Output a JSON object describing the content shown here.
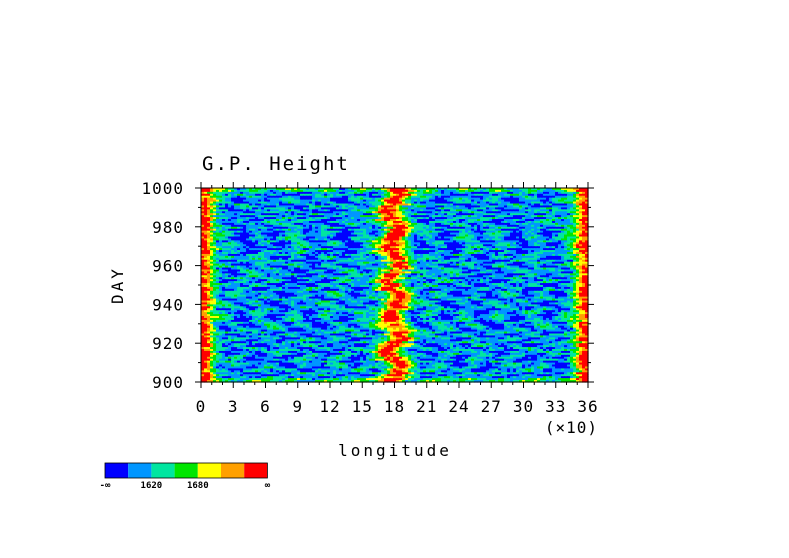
{
  "chart_data": {
    "type": "heatmap",
    "title": "G.P. Height",
    "xlabel": "longitude",
    "ylabel": "DAY",
    "x_scale_note": "(×10)",
    "xlim": [
      0,
      36
    ],
    "ylim": [
      900,
      1000
    ],
    "x_ticks": [
      0,
      3,
      6,
      9,
      12,
      15,
      18,
      21,
      24,
      27,
      30,
      33,
      36
    ],
    "x_tick_labels": [
      "0",
      "3",
      "6",
      "9",
      "12",
      "15",
      "18",
      "21",
      "24",
      "27",
      "30",
      "33",
      "36"
    ],
    "y_ticks": [
      900,
      920,
      940,
      960,
      980,
      1000
    ],
    "y_tick_labels": [
      "900",
      "920",
      "940",
      "960",
      "980",
      "1000"
    ],
    "colorbar": {
      "colors": [
        "#0000ff",
        "#0096ff",
        "#00e6a0",
        "#00e600",
        "#ffff00",
        "#ffa000",
        "#ff0000"
      ],
      "labels": [
        "-∞",
        "1620",
        "1680",
        "∞"
      ]
    }
  }
}
